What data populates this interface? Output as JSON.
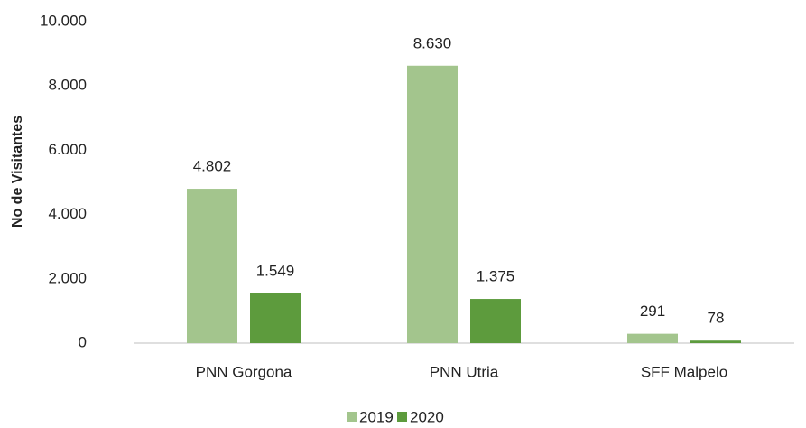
{
  "chart_data": {
    "type": "bar",
    "y_label": "No de Visitantes",
    "categories": [
      "PNN Gorgona",
      "PNN Utria",
      "SFF Malpelo"
    ],
    "series": [
      {
        "name": "2019",
        "color": "#a3c58d",
        "values": [
          4802,
          8630,
          291
        ],
        "value_labels": [
          "4.802",
          "8.630",
          "291"
        ]
      },
      {
        "name": "2020",
        "color": "#5d9b3d",
        "values": [
          1549,
          1375,
          78
        ],
        "value_labels": [
          "1.549",
          "1.375",
          "78"
        ]
      }
    ],
    "ylim": [
      0,
      10000
    ],
    "yticks": [
      0,
      {
        "value": 2000,
        "label": "2.000"
      },
      {
        "value": 4000,
        "label": "4.000"
      },
      {
        "value": 6000,
        "label": "6.000"
      },
      {
        "value": 8000,
        "label": "8.000"
      },
      {
        "value": 10000,
        "label": "10.000"
      }
    ],
    "grid": false,
    "legend": "bottom"
  }
}
